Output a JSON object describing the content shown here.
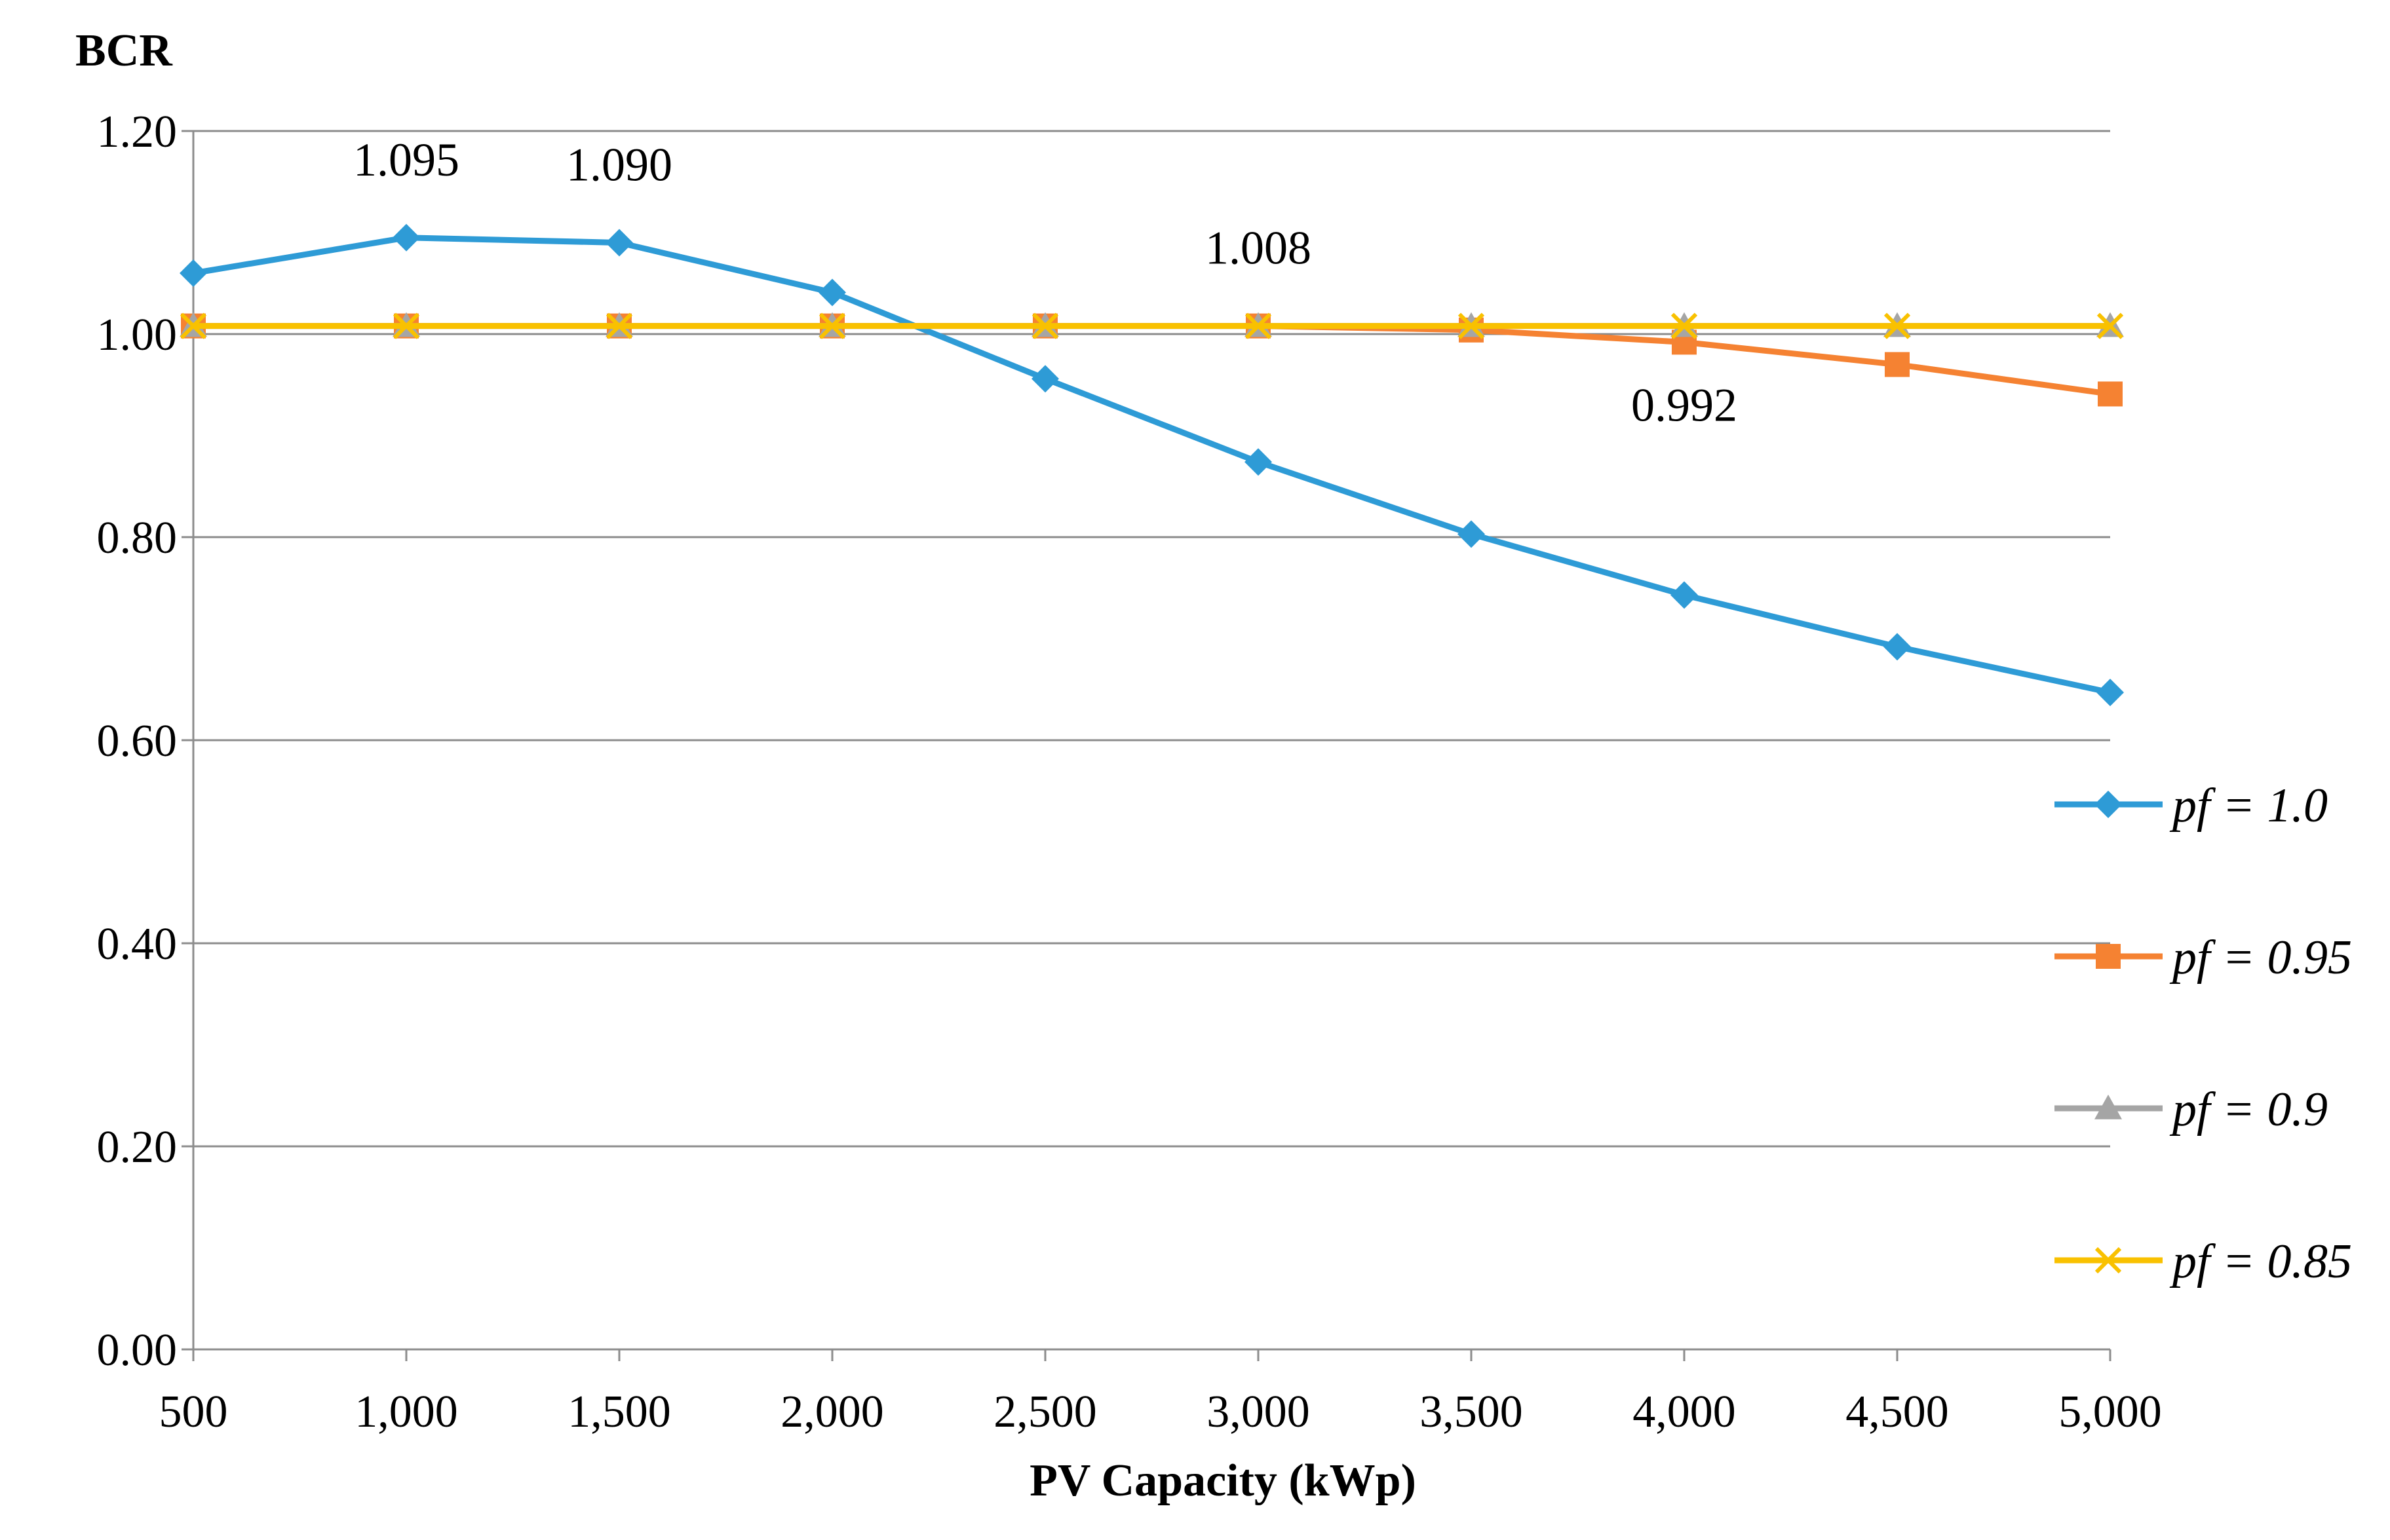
{
  "chart_data": {
    "type": "line",
    "title": "",
    "ylabel": "BCR",
    "xlabel": "PV Capacity (kWp)",
    "x": [
      500,
      1000,
      1500,
      2000,
      2500,
      3000,
      3500,
      4000,
      4500,
      5000
    ],
    "x_tick_labels": [
      "500",
      "1,000",
      "1,500",
      "2,000",
      "2,500",
      "3,000",
      "3,500",
      "4,000",
      "4,500",
      "5,000"
    ],
    "ylim": [
      0,
      1.2
    ],
    "y_ticks": [
      0,
      0.2,
      0.4,
      0.6,
      0.8,
      1.0,
      1.2
    ],
    "y_tick_labels": [
      "0.00",
      "0.20",
      "0.40",
      "0.60",
      "0.80",
      "1.00",
      "1.20"
    ],
    "grid": "horizontal",
    "legend_position": "right",
    "series": [
      {
        "name": "pf = 1.0",
        "color": "#2E9BD6",
        "marker": "diamond",
        "values": [
          1.06,
          1.095,
          1.09,
          1.041,
          0.956,
          0.874,
          0.803,
          0.743,
          0.692,
          0.647
        ]
      },
      {
        "name": "pf = 0.95",
        "color": "#F58232",
        "marker": "square",
        "values": [
          1.008,
          1.008,
          1.008,
          1.008,
          1.008,
          1.008,
          1.004,
          0.992,
          0.97,
          0.941
        ]
      },
      {
        "name": "pf = 0.9",
        "color": "#A5A5A5",
        "marker": "triangle",
        "values": [
          1.008,
          1.008,
          1.008,
          1.008,
          1.008,
          1.008,
          1.008,
          1.008,
          1.008,
          1.008
        ]
      },
      {
        "name": "pf = 0.85",
        "color": "#F9C100",
        "marker": "x",
        "values": [
          1.008,
          1.008,
          1.008,
          1.008,
          1.008,
          1.008,
          1.008,
          1.008,
          1.008,
          1.008
        ]
      }
    ],
    "annotations": [
      {
        "text": "1.095",
        "x": 1000,
        "y": 1.095,
        "placement": "above"
      },
      {
        "text": "1.090",
        "x": 1500,
        "y": 1.09,
        "placement": "above"
      },
      {
        "text": "1.008",
        "x": 3000,
        "y": 1.008,
        "placement": "above"
      },
      {
        "text": "0.992",
        "x": 4000,
        "y": 0.992,
        "placement": "below"
      }
    ]
  }
}
